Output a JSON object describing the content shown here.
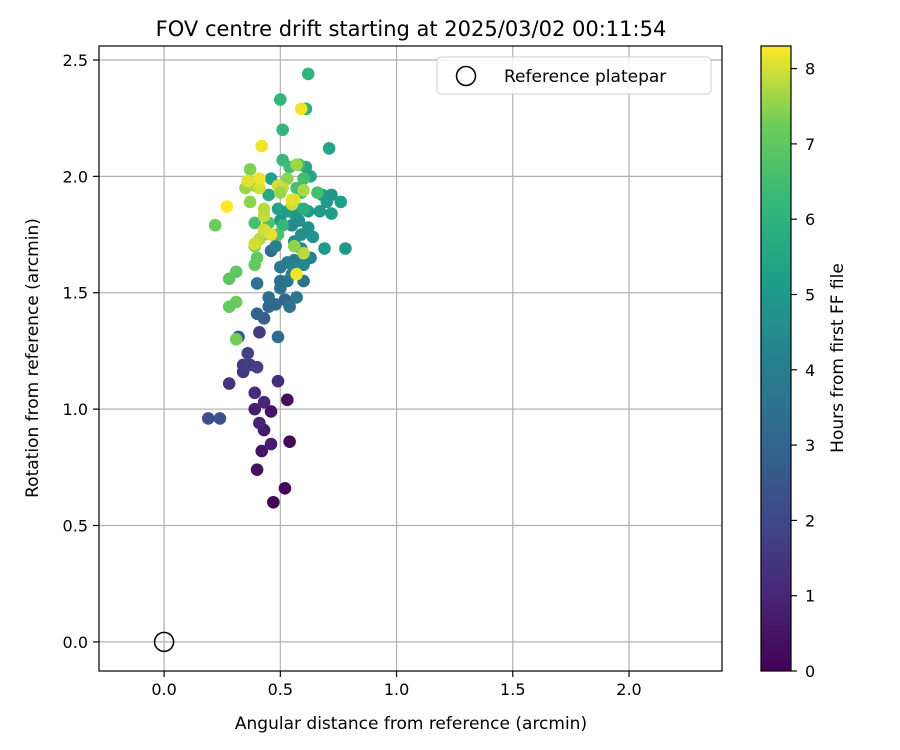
{
  "chart_data": {
    "type": "scatter",
    "title": "FOV centre drift starting at 2025/03/02 00:11:54",
    "xlabel": "Angular distance from reference (arcmin)",
    "ylabel": "Rotation from reference (arcmin)",
    "colorbar_label": "Hours from first FF file",
    "colormap": "viridis",
    "xlim": [
      -0.28,
      2.4
    ],
    "ylim": [
      -0.125,
      2.56
    ],
    "clim": [
      0,
      8.3
    ],
    "xticks": [
      0.0,
      0.5,
      1.0,
      1.5,
      2.0
    ],
    "yticks": [
      0.0,
      0.5,
      1.0,
      1.5,
      2.0,
      2.5
    ],
    "xtick_labels": [
      "0.0",
      "0.5",
      "1.0",
      "1.5",
      "2.0"
    ],
    "ytick_labels": [
      "0.0",
      "0.5",
      "1.0",
      "1.5",
      "2.0",
      "2.5"
    ],
    "cbar_ticks": [
      0,
      1,
      2,
      3,
      4,
      5,
      6,
      7,
      8
    ],
    "cbar_tick_labels": [
      "0",
      "1",
      "2",
      "3",
      "4",
      "5",
      "6",
      "7",
      "8"
    ],
    "grid": true,
    "legend": {
      "position": "top-right",
      "label": "Reference platepar"
    },
    "reference_point": {
      "x": 0.0,
      "y": 0.0
    },
    "points": [
      [
        0.47,
        0.6,
        0.05
      ],
      [
        0.52,
        0.66,
        0.15
      ],
      [
        0.4,
        0.74,
        0.4
      ],
      [
        0.42,
        0.82,
        0.5
      ],
      [
        0.46,
        0.85,
        0.7
      ],
      [
        0.54,
        0.86,
        0.2
      ],
      [
        0.53,
        1.04,
        0.3
      ],
      [
        0.43,
        0.91,
        0.6
      ],
      [
        0.41,
        0.94,
        0.9
      ],
      [
        0.39,
        1.0,
        0.8
      ],
      [
        0.43,
        1.03,
        1.0
      ],
      [
        0.46,
        0.99,
        0.5
      ],
      [
        0.39,
        1.07,
        1.1
      ],
      [
        0.49,
        1.12,
        1.2
      ],
      [
        0.28,
        1.11,
        1.3
      ],
      [
        0.34,
        1.16,
        1.5
      ],
      [
        0.34,
        1.19,
        1.6
      ],
      [
        0.37,
        1.19,
        1.7
      ],
      [
        0.4,
        1.18,
        1.8
      ],
      [
        0.36,
        1.24,
        1.9
      ],
      [
        0.19,
        0.96,
        2.2
      ],
      [
        0.24,
        0.96,
        2.4
      ],
      [
        0.32,
        1.31,
        2.5
      ],
      [
        0.41,
        1.33,
        1.6
      ],
      [
        0.43,
        1.39,
        2.8
      ],
      [
        0.4,
        1.41,
        3.0
      ],
      [
        0.45,
        1.44,
        3.1
      ],
      [
        0.48,
        1.45,
        3.2
      ],
      [
        0.52,
        1.47,
        3.0
      ],
      [
        0.49,
        1.31,
        3.3
      ],
      [
        0.45,
        1.48,
        3.4
      ],
      [
        0.54,
        1.44,
        3.5
      ],
      [
        0.57,
        1.48,
        3.7
      ],
      [
        0.5,
        1.52,
        3.6
      ],
      [
        0.53,
        1.55,
        3.8
      ],
      [
        0.5,
        1.55,
        3.4
      ],
      [
        0.55,
        1.58,
        3.9
      ],
      [
        0.6,
        1.55,
        3.6
      ],
      [
        0.5,
        1.61,
        3.7
      ],
      [
        0.53,
        1.63,
        3.9
      ],
      [
        0.56,
        1.64,
        4.0
      ],
      [
        0.4,
        1.54,
        3.5
      ],
      [
        0.46,
        1.68,
        3.2
      ],
      [
        0.48,
        1.7,
        4.2
      ],
      [
        0.55,
        1.62,
        4.1
      ],
      [
        0.6,
        1.62,
        4.3
      ],
      [
        0.63,
        1.65,
        4.2
      ],
      [
        0.59,
        1.69,
        4.4
      ],
      [
        0.56,
        1.72,
        4.5
      ],
      [
        0.59,
        1.75,
        4.6
      ],
      [
        0.62,
        1.78,
        4.7
      ],
      [
        0.64,
        1.74,
        4.8
      ],
      [
        0.55,
        1.79,
        4.5
      ],
      [
        0.58,
        1.81,
        4.6
      ],
      [
        0.5,
        1.81,
        4.8
      ],
      [
        0.56,
        1.84,
        4.9
      ],
      [
        0.62,
        1.85,
        5.0
      ],
      [
        0.67,
        1.85,
        5.1
      ],
      [
        0.72,
        1.84,
        5.2
      ],
      [
        0.7,
        1.89,
        5.0
      ],
      [
        0.68,
        1.92,
        5.1
      ],
      [
        0.72,
        1.92,
        4.9
      ],
      [
        0.76,
        1.89,
        5.2
      ],
      [
        0.78,
        1.69,
        5.0
      ],
      [
        0.69,
        1.69,
        5.0
      ],
      [
        0.71,
        2.12,
        5.4
      ],
      [
        0.61,
        2.04,
        5.5
      ],
      [
        0.63,
        2.0,
        5.5
      ],
      [
        0.45,
        1.92,
        5.6
      ],
      [
        0.46,
        1.99,
        5.3
      ],
      [
        0.49,
        1.86,
        5.4
      ],
      [
        0.53,
        1.85,
        5.2
      ],
      [
        0.56,
        1.88,
        5.7
      ],
      [
        0.6,
        1.86,
        5.8
      ],
      [
        0.61,
        2.29,
        5.9
      ],
      [
        0.62,
        2.44,
        6.0
      ],
      [
        0.5,
        2.33,
        6.1
      ],
      [
        0.51,
        2.2,
        6.2
      ],
      [
        0.51,
        2.07,
        6.3
      ],
      [
        0.54,
        2.04,
        6.4
      ],
      [
        0.58,
        2.05,
        6.4
      ],
      [
        0.6,
        1.99,
        6.5
      ],
      [
        0.57,
        1.95,
        6.6
      ],
      [
        0.66,
        1.93,
        6.5
      ],
      [
        0.59,
        1.93,
        6.3
      ],
      [
        0.39,
        1.8,
        6.6
      ],
      [
        0.45,
        1.8,
        6.7
      ],
      [
        0.51,
        1.79,
        6.2
      ],
      [
        0.49,
        1.75,
        6.6
      ],
      [
        0.43,
        1.75,
        6.8
      ],
      [
        0.4,
        1.65,
        7.0
      ],
      [
        0.39,
        1.62,
        7.1
      ],
      [
        0.31,
        1.59,
        7.0
      ],
      [
        0.28,
        1.56,
        7.0
      ],
      [
        0.31,
        1.46,
        7.2
      ],
      [
        0.28,
        1.44,
        7.1
      ],
      [
        0.31,
        1.3,
        7.3
      ],
      [
        0.22,
        1.79,
        7.2
      ],
      [
        0.39,
        1.7,
        7.4
      ],
      [
        0.41,
        1.73,
        7.8
      ],
      [
        0.46,
        1.75,
        8.1
      ],
      [
        0.43,
        1.77,
        8.0
      ],
      [
        0.43,
        1.83,
        7.9
      ],
      [
        0.39,
        1.71,
        8.0
      ],
      [
        0.43,
        1.86,
        7.8
      ],
      [
        0.37,
        1.89,
        7.5
      ],
      [
        0.35,
        1.95,
        7.6
      ],
      [
        0.37,
        2.03,
        7.4
      ],
      [
        0.39,
        1.96,
        7.7
      ],
      [
        0.41,
        1.95,
        8.0
      ],
      [
        0.41,
        1.99,
        8.2
      ],
      [
        0.36,
        1.98,
        8.1
      ],
      [
        0.42,
        2.13,
        8.2
      ],
      [
        0.53,
        1.99,
        7.5
      ],
      [
        0.49,
        1.96,
        8.0
      ],
      [
        0.51,
        1.95,
        7.9
      ],
      [
        0.56,
        1.9,
        8.1
      ],
      [
        0.55,
        1.88,
        8.0
      ],
      [
        0.59,
        2.29,
        8.2
      ],
      [
        0.57,
        2.05,
        7.6
      ],
      [
        0.6,
        1.94,
        7.7
      ],
      [
        0.6,
        1.67,
        7.8
      ],
      [
        0.56,
        1.7,
        7.5
      ],
      [
        0.57,
        1.58,
        8.2
      ],
      [
        0.27,
        1.87,
        8.3
      ],
      [
        0.5,
        1.93,
        7.6
      ],
      [
        0.55,
        1.9,
        8.1
      ]
    ]
  }
}
